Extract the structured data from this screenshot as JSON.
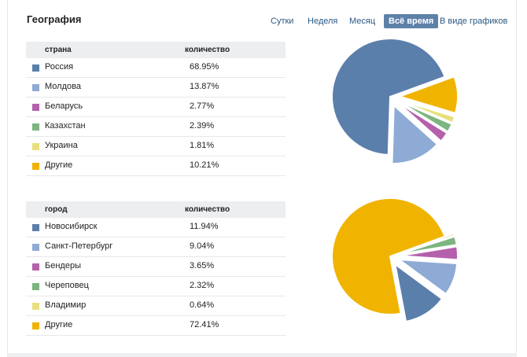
{
  "header": {
    "title": "География",
    "tabs": [
      {
        "label": "Сутки",
        "active": false
      },
      {
        "label": "Неделя",
        "active": false
      },
      {
        "label": "Месяц",
        "active": false
      },
      {
        "label": "Всё время",
        "active": true
      },
      {
        "label": "В виде графиков",
        "active": false
      }
    ]
  },
  "colors": [
    "#5b7fab",
    "#8eabd5",
    "#b560ab",
    "#7cb57f",
    "#e8e07e",
    "#f0b400"
  ],
  "countries": {
    "col_name": "страна",
    "col_value": "количество",
    "rows": [
      {
        "name": "Россия",
        "value": "68.95%"
      },
      {
        "name": "Молдова",
        "value": "13.87%"
      },
      {
        "name": "Беларусь",
        "value": "2.77%"
      },
      {
        "name": "Казахстан",
        "value": "2.39%"
      },
      {
        "name": "Украина",
        "value": "1.81%"
      },
      {
        "name": "Другие",
        "value": "10.21%"
      }
    ]
  },
  "cities": {
    "col_name": "город",
    "col_value": "количество",
    "rows": [
      {
        "name": "Новосибирск",
        "value": "11.94%"
      },
      {
        "name": "Санкт-Петербург",
        "value": "9.04%"
      },
      {
        "name": "Бендеры",
        "value": "3.65%"
      },
      {
        "name": "Череповец",
        "value": "2.32%"
      },
      {
        "name": "Владимир",
        "value": "0.64%"
      },
      {
        "name": "Другие",
        "value": "72.41%"
      }
    ]
  },
  "chart_data": [
    {
      "type": "pie",
      "categories": [
        "Россия",
        "Молдова",
        "Беларусь",
        "Казахстан",
        "Украина",
        "Другие"
      ],
      "values": [
        68.95,
        13.87,
        2.77,
        2.39,
        1.81,
        10.21
      ],
      "exploded": true
    },
    {
      "type": "pie",
      "categories": [
        "Новосибирск",
        "Санкт-Петербург",
        "Бендеры",
        "Череповец",
        "Владимир",
        "Другие"
      ],
      "values": [
        11.94,
        9.04,
        3.65,
        2.32,
        0.64,
        72.41
      ],
      "exploded": true
    }
  ]
}
